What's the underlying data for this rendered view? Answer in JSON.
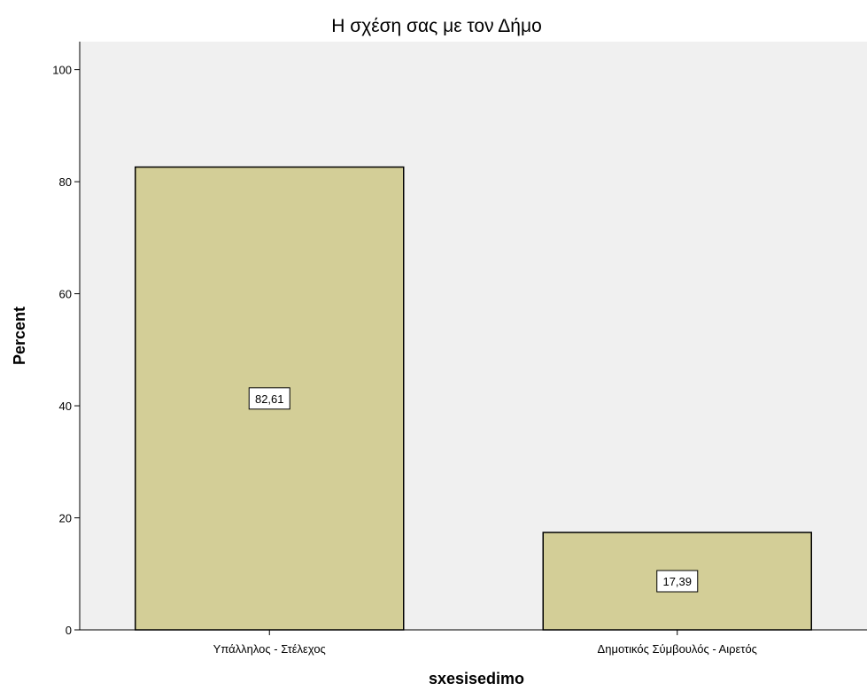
{
  "chart_data": {
    "type": "bar",
    "title": "Η σχέση σας με τον Δήμο",
    "xlabel": "sxesisedimo",
    "ylabel": "Percent",
    "categories": [
      "Υπάλληλος - Στέλεχος",
      "Δημοτικός Σύμβουλός  - Αιρετός"
    ],
    "values": [
      82.61,
      17.39
    ],
    "value_labels": [
      "82,61",
      "17,39"
    ],
    "ylim": [
      0,
      105
    ],
    "yticks": [
      0,
      20,
      40,
      60,
      80,
      100
    ],
    "grid": false,
    "legend": "none",
    "colors": {
      "bar_fill": "#d3ce97",
      "bar_stroke": "#000000",
      "plot_background": "#f0f0f0"
    }
  }
}
